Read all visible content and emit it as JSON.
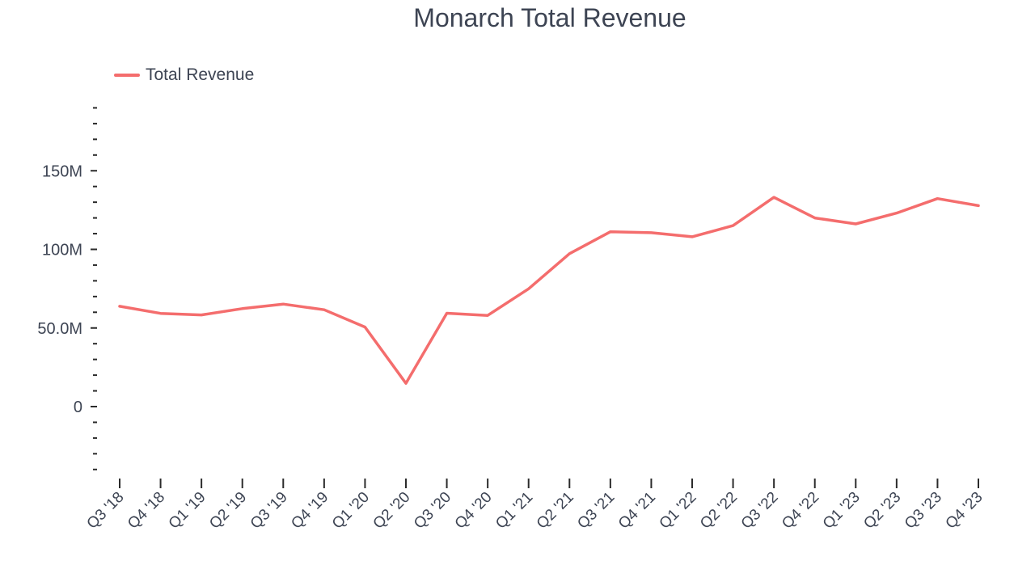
{
  "chart_data": {
    "type": "line",
    "title": "Monarch Total Revenue",
    "xlabel": "",
    "ylabel": "",
    "categories": [
      "Q3 '18",
      "Q4 '18",
      "Q1 '19",
      "Q2 '19",
      "Q3 '19",
      "Q4 '19",
      "Q1 '20",
      "Q2 '20",
      "Q3 '20",
      "Q4 '20",
      "Q1 '21",
      "Q2 '21",
      "Q3 '21",
      "Q4 '21",
      "Q1 '22",
      "Q2 '22",
      "Q3 '22",
      "Q4 '22",
      "Q1 '23",
      "Q2 '23",
      "Q3 '23",
      "Q4 '23"
    ],
    "series": [
      {
        "name": "Total Revenue",
        "color": "#f46d6d",
        "values": [
          63.8,
          59.3,
          58.3,
          62.3,
          65.2,
          61.6,
          50.6,
          14.8,
          59.4,
          58.0,
          74.9,
          97.3,
          111.2,
          110.6,
          108.0,
          115.1,
          133.1,
          120.0,
          116.2,
          123.1,
          132.3,
          127.8
        ]
      }
    ],
    "ylim": [
      -41,
      190
    ],
    "yticks": [
      0,
      50,
      100,
      150
    ],
    "ytick_labels": [
      "0",
      "50.0M",
      "100M",
      "150M"
    ],
    "y_minor_step": 10,
    "grid": false,
    "legend_position": "top-left"
  }
}
